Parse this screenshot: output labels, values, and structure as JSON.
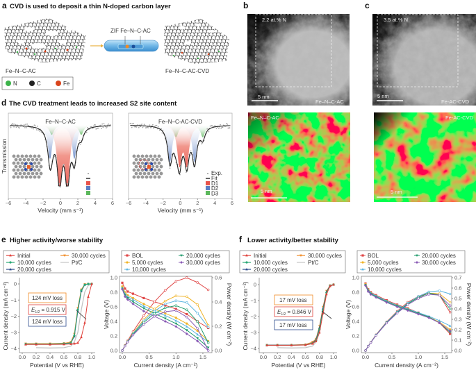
{
  "figure": {
    "panel_a": {
      "letter": "a",
      "title": "CVD is used to deposit a thin N-doped carbon layer",
      "tube_label": "ZIF Fe–N–C-AC",
      "left_label": "Fe–N–C-AC",
      "right_label": "Fe–N–C-AC-CVD",
      "legend": [
        {
          "label": "N",
          "color": "#3cb34a"
        },
        {
          "label": "C",
          "color": "#222222"
        },
        {
          "label": "Fe",
          "color": "#d9441c"
        }
      ]
    },
    "panel_b": {
      "letter": "b",
      "n_content": "2.2 at.% N",
      "scale": "5 nm",
      "image_label": "Fe–N–C-AC",
      "map_label": "Fe–N–C-AC",
      "map_scale": "5 nm"
    },
    "panel_c": {
      "letter": "c",
      "n_content": "3.5 at.% N",
      "scale": "5 nm",
      "image_label": "Fe-AC-CVD",
      "map_label": "Fe-AC-CVD",
      "map_scale": "5 nm"
    },
    "panel_d": {
      "letter": "d",
      "title": "The CVD treatment leads to increased S2 site content"
    },
    "panel_e": {
      "letter": "e",
      "title": "Higher activity/worse stability",
      "loss_top": "124 mV loss",
      "e_half_symbol": "E",
      "e_half_sub": "1/2",
      "e_half_value": " = 0.915 V",
      "loss_bottom": "124 mV loss"
    },
    "panel_f": {
      "letter": "f",
      "title": "Lower activity/better stability",
      "loss_top": "17 mV loss",
      "e_half_symbol": "E",
      "e_half_sub": "1/2",
      "e_half_value": " = 0.846 V",
      "loss_bottom": "17 mV loss"
    }
  },
  "chart_data": [
    {
      "id": "d_left",
      "type": "line",
      "title": "Fe–N–C-AC",
      "xlabel": "Velocity (mm s⁻¹)",
      "ylabel": "Transmission",
      "xlim": [
        -6,
        6
      ],
      "xticks": [
        "−6",
        "−4",
        "−2",
        "0",
        "2",
        "4",
        "6"
      ],
      "legend_labels_shown": false,
      "components": [
        {
          "name": "D1",
          "color": "#e8534a",
          "lines_mm_s": [
            -0.1,
            0.8
          ],
          "relative_depth": 0.95
        },
        {
          "name": "D2",
          "color": "#5b7fc4",
          "lines_mm_s": [
            -1.2,
            1.6
          ],
          "relative_depth": 0.55
        },
        {
          "name": "D3",
          "color": "#5cb85c",
          "lines_mm_s": [
            -1.0,
            2.4
          ],
          "relative_depth": 0.16
        }
      ]
    },
    {
      "id": "d_right",
      "type": "line",
      "title": "Fe–N–C-AC-CVD",
      "xlabel": "Velocity (mm s⁻¹)",
      "ylabel": "",
      "xlim": [
        -6,
        6
      ],
      "xticks": [
        "−6",
        "−4",
        "−2",
        "0",
        "2",
        "4",
        "6"
      ],
      "legend": [
        "Exp.",
        "Fit",
        "D1",
        "D2",
        "D3"
      ],
      "components": [
        {
          "name": "D1",
          "color": "#e8534a",
          "lines_mm_s": [
            -0.1,
            0.75
          ],
          "relative_depth": 0.62
        },
        {
          "name": "D2",
          "color": "#5b7fc4",
          "lines_mm_s": [
            -1.2,
            1.65
          ],
          "relative_depth": 0.6
        },
        {
          "name": "D3",
          "color": "#5cb85c",
          "lines_mm_s": [
            -0.5,
            2.6
          ],
          "relative_depth": 0.2
        }
      ]
    },
    {
      "id": "e_lsv",
      "type": "line",
      "xlabel": "Potential (V vs RHE)",
      "ylabel": "Current density (mA cm⁻²)",
      "xlim": [
        0,
        1.05
      ],
      "ylim": [
        -4.2,
        0.3
      ],
      "xticks": [
        "0.0",
        "0.2",
        "0.4",
        "0.6",
        "0.8",
        "1.0"
      ],
      "yticks": [
        "0",
        "−1",
        "−2",
        "−3",
        "−4"
      ],
      "x": [
        0.05,
        0.2,
        0.4,
        0.6,
        0.7,
        0.75,
        0.8,
        0.85,
        0.9,
        0.95,
        1.0
      ],
      "series": [
        {
          "name": "Initial",
          "color": "#e0403a",
          "values": [
            -3.75,
            -3.75,
            -3.75,
            -3.74,
            -3.72,
            -3.7,
            -3.65,
            -3.3,
            -2.4,
            -0.8,
            0.0
          ]
        },
        {
          "name": "10,000 cycles",
          "color": "#2aa876",
          "values": [
            -3.72,
            -3.72,
            -3.72,
            -3.7,
            -3.65,
            -3.2,
            -1.6,
            -0.4,
            -0.05,
            0,
            0
          ]
        },
        {
          "name": "20,000 cycles",
          "color": "#2b4a8c",
          "values": [
            -3.73,
            -3.73,
            -3.73,
            -3.71,
            -3.66,
            -3.25,
            -1.7,
            -0.45,
            -0.05,
            0,
            0
          ]
        },
        {
          "name": "30,000 cycles",
          "color": "#f08a24",
          "values": [
            -3.7,
            -3.7,
            -3.7,
            -3.68,
            -3.6,
            -3.1,
            -1.5,
            -0.35,
            -0.02,
            0,
            0
          ]
        },
        {
          "name": "Pt/C",
          "color": "#c4c4c4",
          "values": [
            null,
            -3.95,
            -3.97,
            -3.95,
            -3.85,
            -3.6,
            -3.0,
            -1.6,
            -0.5,
            -0.1,
            0
          ]
        }
      ]
    },
    {
      "id": "e_fc",
      "type": "line",
      "xlabel": "Current density (A cm⁻²)",
      "ylabel": "Voltage (V)",
      "y2label": "Power density (W cm⁻²)",
      "xlim": [
        0,
        1.7
      ],
      "ylim": [
        0,
        1.0
      ],
      "y2lim": [
        0,
        0.6
      ],
      "xticks": [
        "0.0",
        "0.5",
        "1.0",
        "1.5"
      ],
      "yticks": [
        "0.0",
        "0.2",
        "0.4",
        "0.6",
        "0.8",
        "1.0"
      ],
      "y2ticks": [
        "0.0",
        "0.2",
        "0.4",
        "0.6"
      ],
      "x": [
        0,
        0.05,
        0.1,
        0.2,
        0.4,
        0.6,
        0.8,
        1.0,
        1.2,
        1.4,
        1.6
      ],
      "series": [
        {
          "name": "BOL",
          "color": "#e04848",
          "voltage": [
            0.93,
            0.85,
            0.81,
            0.78,
            0.72,
            0.67,
            0.62,
            0.57,
            0.5,
            0.4,
            0.31
          ],
          "power": [
            0,
            0.043,
            0.081,
            0.156,
            0.288,
            0.402,
            0.496,
            0.57,
            0.6,
            0.56,
            0.5
          ]
        },
        {
          "name": "5,000 cycles",
          "color": "#f0b429",
          "voltage": [
            0.88,
            0.8,
            0.76,
            0.72,
            0.64,
            0.57,
            0.51,
            0.45,
            0.37,
            0.27,
            0.13
          ],
          "power": [
            0,
            0.04,
            0.076,
            0.144,
            0.256,
            0.342,
            0.408,
            0.45,
            0.444,
            0.378,
            0.208
          ]
        },
        {
          "name": "10,000 cycles",
          "color": "#5ab4e0",
          "voltage": [
            0.86,
            0.78,
            0.74,
            0.7,
            0.61,
            0.54,
            0.48,
            0.41,
            0.33,
            0.22,
            0.12
          ],
          "power": [
            0,
            0.039,
            0.074,
            0.14,
            0.244,
            0.324,
            0.384,
            0.41,
            0.396,
            0.308,
            0.192
          ]
        },
        {
          "name": "20,000 cycles",
          "color": "#1e9a6a",
          "voltage": [
            0.85,
            0.76,
            0.72,
            0.67,
            0.58,
            0.51,
            0.44,
            0.37,
            0.28,
            0.17,
            0.04
          ],
          "power": [
            0,
            0.038,
            0.072,
            0.134,
            0.232,
            0.306,
            0.352,
            0.37,
            0.336,
            0.238,
            0.064
          ]
        },
        {
          "name": "30,000 cycles",
          "color": "#8a5bb5",
          "voltage": [
            0.84,
            0.74,
            0.7,
            0.64,
            0.54,
            0.47,
            0.4,
            0.33,
            0.23,
            0.13,
            0.0
          ],
          "power": [
            0,
            0.037,
            0.07,
            0.128,
            0.216,
            0.282,
            0.32,
            0.33,
            0.276,
            0.182,
            0
          ]
        }
      ]
    },
    {
      "id": "f_lsv",
      "type": "line",
      "xlabel": "Potential (V vs RHE)",
      "ylabel": "Current density (mA cm⁻²)",
      "xlim": [
        0,
        1.05
      ],
      "ylim": [
        -4.2,
        0.3
      ],
      "xticks": [
        "0.0",
        "0.2",
        "0.4",
        "0.6",
        "0.8",
        "1.0"
      ],
      "yticks": [
        "0",
        "−1",
        "−2",
        "−3",
        "−4"
      ],
      "x": [
        0.05,
        0.2,
        0.4,
        0.6,
        0.7,
        0.75,
        0.8,
        0.85,
        0.9,
        0.95,
        1.0
      ],
      "series": [
        {
          "name": "Initial",
          "color": "#e0403a",
          "values": [
            -3.8,
            -3.8,
            -3.8,
            -3.78,
            -3.7,
            -3.55,
            -3.0,
            -1.8,
            -0.6,
            -0.1,
            0
          ]
        },
        {
          "name": "10,000 cycles",
          "color": "#2aa876",
          "values": [
            -3.8,
            -3.8,
            -3.8,
            -3.78,
            -3.68,
            -3.5,
            -2.8,
            -1.6,
            -0.5,
            -0.08,
            0
          ]
        },
        {
          "name": "20,000 cycles",
          "color": "#2b4a8c",
          "values": [
            -3.79,
            -3.79,
            -3.79,
            -3.77,
            -3.66,
            -3.45,
            -2.7,
            -1.5,
            -0.45,
            -0.06,
            0
          ]
        },
        {
          "name": "30,000 cycles",
          "color": "#f08a24",
          "values": [
            -3.78,
            -3.78,
            -3.78,
            -3.75,
            -3.6,
            -3.4,
            -2.6,
            -1.4,
            -0.4,
            -0.05,
            0
          ]
        },
        {
          "name": "Pt/C",
          "color": "#c4c4c4",
          "values": [
            null,
            -3.95,
            -3.97,
            -3.95,
            -3.85,
            -3.6,
            -3.0,
            -1.6,
            -0.5,
            -0.1,
            0
          ]
        }
      ]
    },
    {
      "id": "f_fc",
      "type": "line",
      "xlabel": "Current density (A cm⁻²)",
      "ylabel": "Voltage (V)",
      "y2label": "Power density (W cm⁻²)",
      "xlim": [
        0,
        1.7
      ],
      "ylim": [
        0,
        1.0
      ],
      "y2lim": [
        0,
        0.7
      ],
      "xticks": [
        "0.0",
        "0.5",
        "1.0",
        "1.5"
      ],
      "yticks": [
        "0.0",
        "0.2",
        "0.4",
        "0.6",
        "0.8",
        "1.0"
      ],
      "y2ticks": [
        "0.0",
        "0.1",
        "0.2",
        "0.3",
        "0.4",
        "0.5",
        "0.6",
        "0.7"
      ],
      "x": [
        0,
        0.05,
        0.1,
        0.2,
        0.4,
        0.6,
        0.8,
        1.0,
        1.2,
        1.4,
        1.6
      ],
      "series": [
        {
          "name": "BOL",
          "color": "#e04848",
          "voltage": [
            0.92,
            0.84,
            0.8,
            0.76,
            0.69,
            0.63,
            0.58,
            0.52,
            0.46,
            0.38,
            0.23
          ],
          "power": [
            0,
            0.042,
            0.08,
            0.152,
            0.276,
            0.378,
            0.464,
            0.52,
            0.552,
            0.532,
            0.368
          ]
        },
        {
          "name": "5,000 cycles",
          "color": "#f0b429",
          "voltage": [
            0.91,
            0.83,
            0.79,
            0.75,
            0.68,
            0.62,
            0.57,
            0.51,
            0.46,
            0.39,
            0.29
          ],
          "power": [
            0,
            0.042,
            0.079,
            0.15,
            0.272,
            0.372,
            0.456,
            0.51,
            0.552,
            0.546,
            0.464
          ]
        },
        {
          "name": "10,000 cycles",
          "color": "#5ab4e0",
          "voltage": [
            0.9,
            0.83,
            0.79,
            0.75,
            0.68,
            0.62,
            0.57,
            0.52,
            0.47,
            0.41,
            0.34
          ],
          "power": [
            0,
            0.042,
            0.079,
            0.15,
            0.272,
            0.372,
            0.456,
            0.52,
            0.564,
            0.574,
            0.544
          ]
        },
        {
          "name": "20,000 cycles",
          "color": "#1e9a6a",
          "voltage": [
            0.9,
            0.82,
            0.78,
            0.74,
            0.67,
            0.61,
            0.56,
            0.51,
            0.46,
            0.38,
            0.25
          ],
          "power": [
            0,
            0.041,
            0.078,
            0.148,
            0.268,
            0.366,
            0.448,
            0.51,
            0.552,
            0.532,
            0.4
          ]
        },
        {
          "name": "30,000 cycles",
          "color": "#8a5bb5",
          "voltage": [
            0.89,
            0.81,
            0.77,
            0.73,
            0.66,
            0.6,
            0.55,
            0.5,
            0.45,
            0.38,
            0.27
          ],
          "power": [
            0,
            0.041,
            0.077,
            0.146,
            0.264,
            0.36,
            0.44,
            0.5,
            0.54,
            0.532,
            0.432
          ]
        }
      ]
    }
  ]
}
